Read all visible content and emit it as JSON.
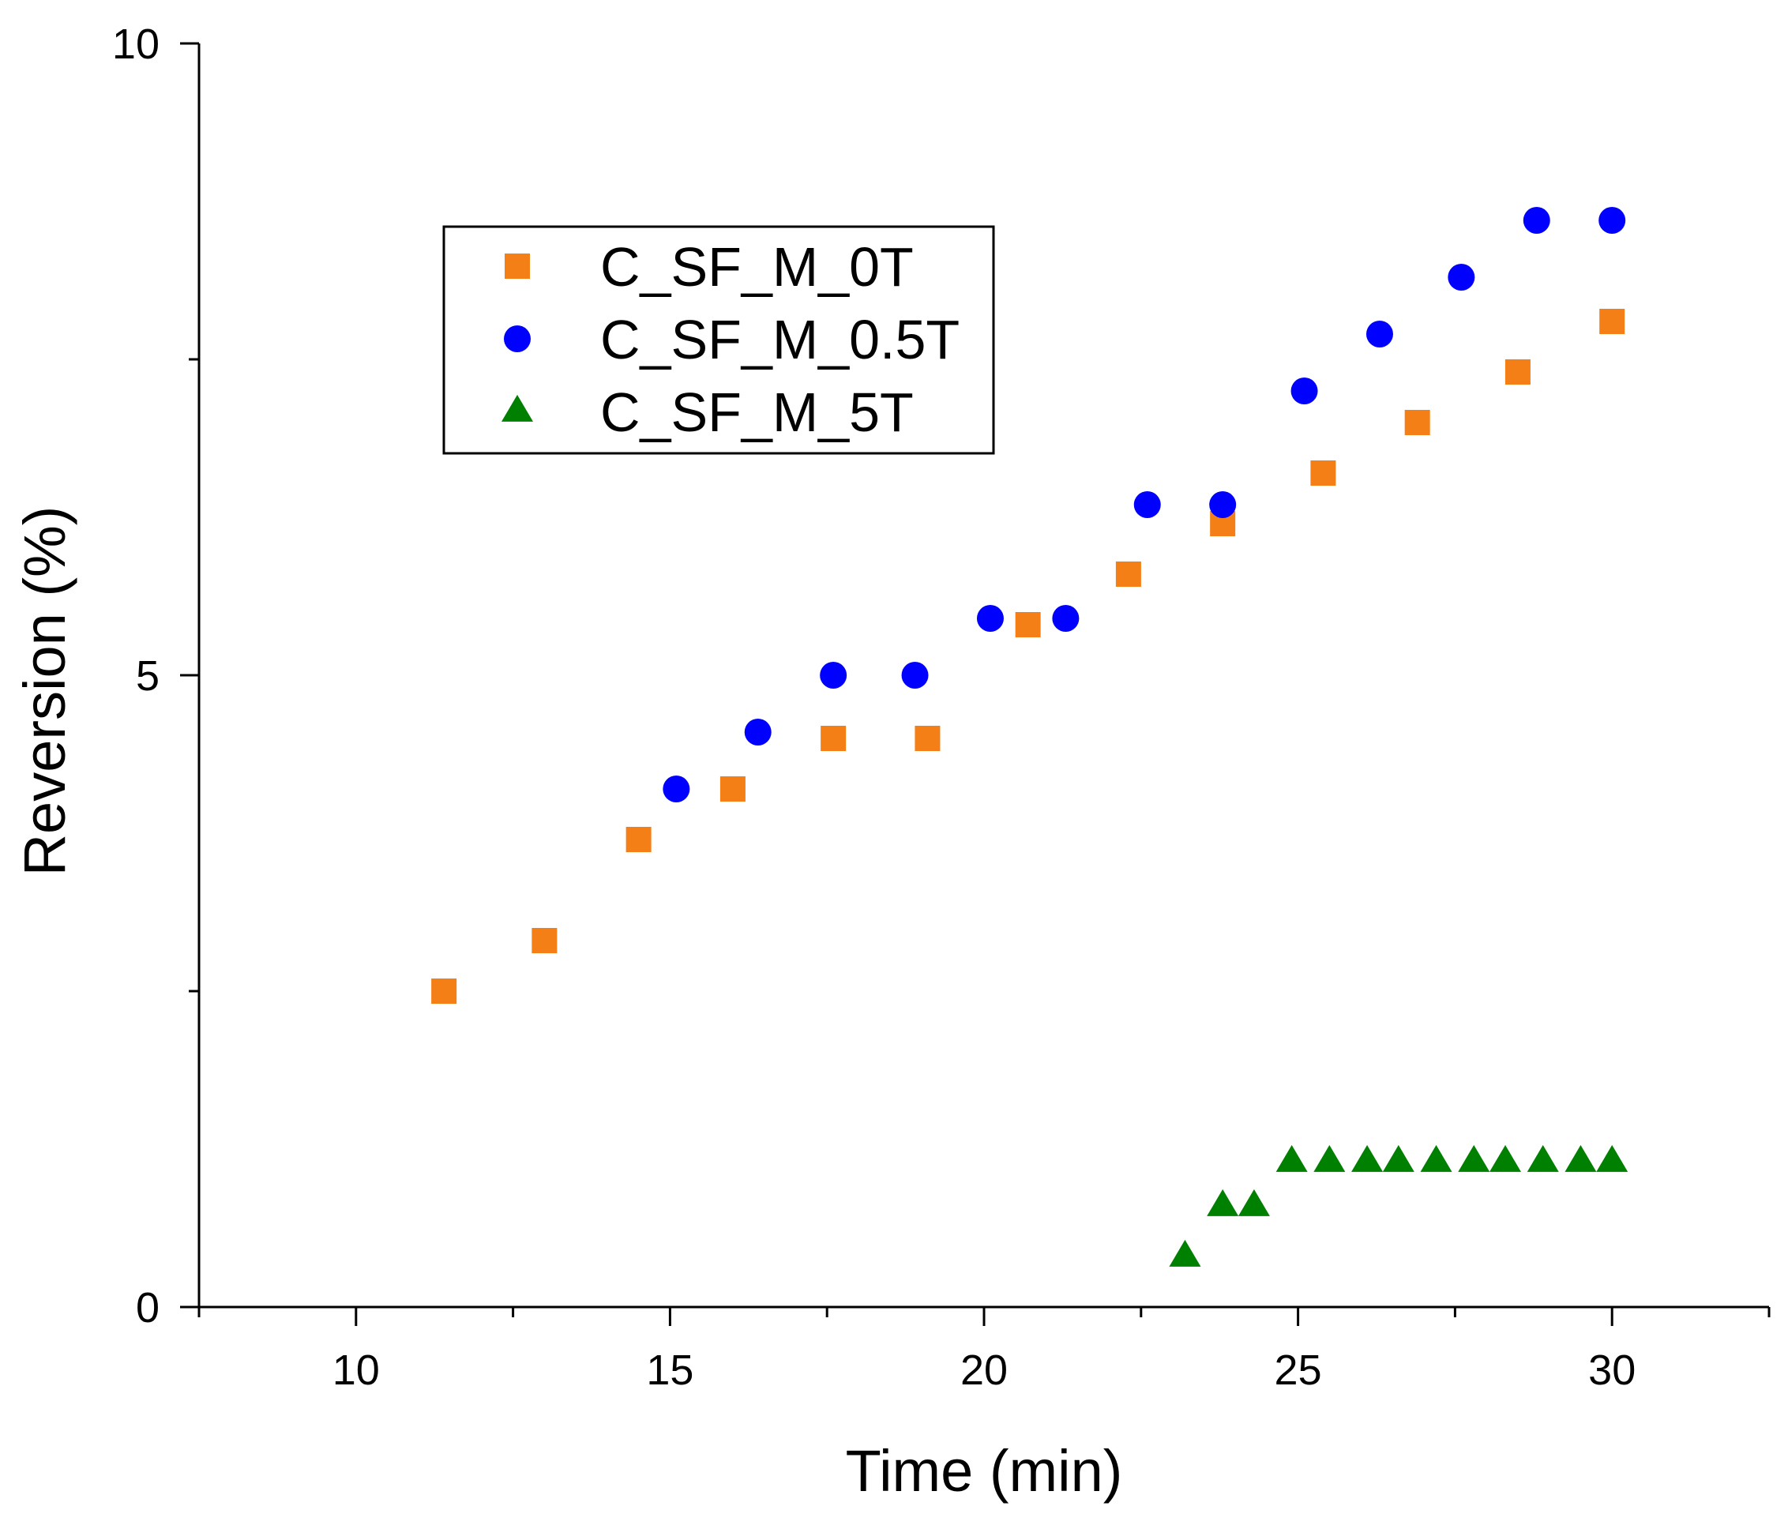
{
  "chart_data": {
    "type": "scatter",
    "title": "",
    "xlabel": "Time (min)",
    "ylabel": "Reversion (%)",
    "xlim": [
      7.5,
      32.5
    ],
    "ylim": [
      0,
      10
    ],
    "x_ticks": [
      10,
      15,
      20,
      25,
      30
    ],
    "x_tick_labels": [
      "10",
      "15",
      "20",
      "25",
      "30"
    ],
    "y_ticks": [
      0,
      5,
      10
    ],
    "y_tick_labels": [
      "0",
      "5",
      "10"
    ],
    "x_minor_ticks": [
      7.5,
      12.5,
      17.5,
      22.5,
      27.5,
      32.5
    ],
    "y_minor_ticks": [
      2.5,
      7.5
    ],
    "grid": false,
    "legend_placement": "upper-left",
    "series": [
      {
        "name": "C_SF_M_0T",
        "marker": "square",
        "color": "#F47F17",
        "x": [
          11.4,
          13.0,
          14.5,
          16.0,
          17.6,
          19.1,
          20.7,
          22.3,
          23.8,
          25.4,
          26.9,
          28.5,
          30.0
        ],
        "y": [
          2.5,
          2.9,
          3.7,
          4.1,
          4.5,
          4.5,
          5.4,
          5.8,
          6.2,
          6.6,
          7.0,
          7.4,
          7.8
        ]
      },
      {
        "name": "C_SF_M_0.5T",
        "marker": "circle",
        "color": "#0000FF",
        "x": [
          15.1,
          16.4,
          17.6,
          18.9,
          20.1,
          21.3,
          22.6,
          23.8,
          25.1,
          26.3,
          27.6,
          28.8,
          30.0
        ],
        "y": [
          4.1,
          4.55,
          5.0,
          5.0,
          5.45,
          5.45,
          6.35,
          6.35,
          7.25,
          7.7,
          8.15,
          8.6,
          8.6
        ]
      },
      {
        "name": "C_SF_M_5T",
        "marker": "triangle",
        "color": "#008000",
        "x": [
          23.2,
          23.8,
          24.3,
          24.9,
          25.5,
          26.1,
          26.6,
          27.2,
          27.8,
          28.3,
          28.9,
          29.5,
          30.0
        ],
        "y": [
          0.4,
          0.8,
          0.8,
          1.15,
          1.15,
          1.15,
          1.15,
          1.15,
          1.15,
          1.15,
          1.15,
          1.15,
          1.15
        ]
      }
    ]
  }
}
